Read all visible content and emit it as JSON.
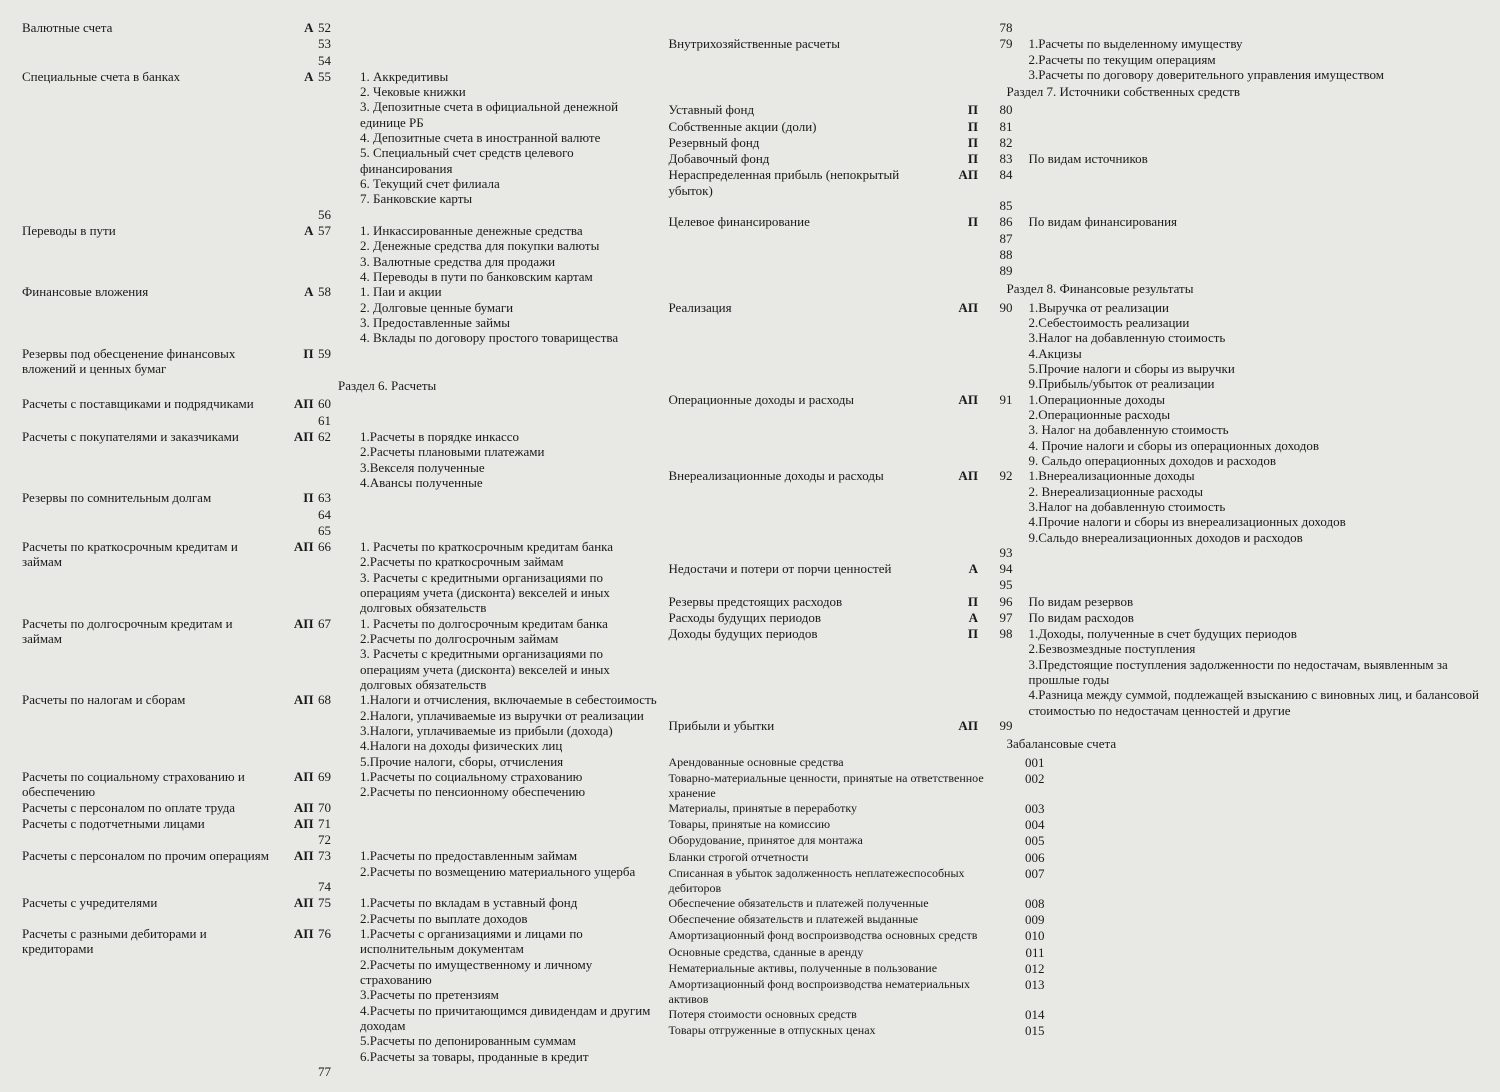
{
  "left": {
    "entries": [
      {
        "name": "Валютные счета",
        "type": "А",
        "num": "52",
        "subs": []
      },
      {
        "name": "",
        "type": "",
        "num": "53",
        "subs": []
      },
      {
        "name": "",
        "type": "",
        "num": "54",
        "subs": []
      },
      {
        "name": "Специальные счета в банках",
        "type": "А",
        "num": "55",
        "subs": [
          "1.    Аккредитивы",
          "2.    Чековые книжки",
          "3.    Депозитные счета в официальной денежной единице РБ",
          "4.    Депозитные счета в иностранной валюте",
          "5.    Специальный счет средств целевого финансирования",
          "6.    Текущий счет филиала",
          "7.    Банковские карты"
        ]
      },
      {
        "name": "",
        "type": "",
        "num": "56",
        "subs": []
      },
      {
        "name": "Переводы в пути",
        "type": "А",
        "num": "57",
        "subs": [
          "1.    Инкассированные денежные средства",
          "2.    Денежные средства для покупки валюты",
          "3.    Валютные средства для продажи",
          "4.    Переводы в пути по банковским картам"
        ]
      },
      {
        "name": "Финансовые вложения",
        "type": "А",
        "num": "58",
        "subs": [
          "1.    Паи и акции",
          "2.    Долговые ценные бумаги",
          "3.    Предоставленные займы",
          "4.    Вклады по договору простого товарищества"
        ]
      },
      {
        "name": "Резервы под обесценение финансовых вложений и ценных бумаг",
        "type": "П",
        "num": "59",
        "subs": []
      },
      {
        "section": "Раздел 6. Расчеты"
      },
      {
        "name": "Расчеты с поставщиками и подрядчиками",
        "type": "АП",
        "num": "60",
        "subs": []
      },
      {
        "name": "",
        "type": "",
        "num": "61",
        "subs": []
      },
      {
        "name": "Расчеты с покупателями и заказчиками",
        "type": "АП",
        "num": "62",
        "subs": [
          "1.Расчеты в порядке инкассо",
          "2.Расчеты плановыми платежами",
          "3.Векселя полученные",
          "4.Авансы полученные"
        ]
      },
      {
        "name": "Резервы по сомнительным долгам",
        "type": "П",
        "num": "63",
        "subs": []
      },
      {
        "name": "",
        "type": "",
        "num": "64",
        "subs": []
      },
      {
        "name": "",
        "type": "",
        "num": "65",
        "subs": []
      },
      {
        "name": "Расчеты по краткосрочным кредитам и займам",
        "type": "АП",
        "num": "66",
        "subs": [
          "1. Расчеты по краткосрочным кредитам банка",
          "2.Расчеты по краткосрочным займам",
          "3. Расчеты с кредитными организациями по операциям учета (дисконта) векселей и иных долговых обязательств"
        ]
      },
      {
        "name": "Расчеты по долгосрочным кредитам и займам",
        "type": "АП",
        "num": "67",
        "subs": [
          "1. Расчеты по долгосрочным кредитам банка",
          "2.Расчеты по долгосрочным займам",
          "3. Расчеты с кредитными организациями по операциям учета (дисконта) векселей и иных долговых обязательств"
        ]
      },
      {
        "name": "Расчеты по налогам и сборам",
        "type": "АП",
        "num": "68",
        "subs": [
          "1.Налоги и отчисления, включаемые в себестоимость",
          "2.Налоги, уплачиваемые из выручки от реализации",
          "3.Налоги, уплачиваемые из прибыли (дохода)",
          "4.Налоги на доходы физических лиц",
          "5.Прочие налоги, сборы, отчисления"
        ]
      },
      {
        "name": "Расчеты по социальному страхованию и обеспечению",
        "type": "АП",
        "num": "69",
        "subs": [
          "1.Расчеты по социальному страхованию",
          "2.Расчеты по пенсионному обеспечению"
        ]
      },
      {
        "name": "Расчеты с персоналом по оплате труда",
        "type": "АП",
        "num": "70",
        "subs": []
      },
      {
        "name": "Расчеты с подотчетными лицами",
        "type": "АП",
        "num": "71",
        "subs": []
      },
      {
        "name": "",
        "type": "",
        "num": "72",
        "subs": []
      },
      {
        "name": "Расчеты с персоналом по прочим операциям",
        "type": "АП",
        "num": "73",
        "subs": [
          "1.Расчеты по предоставленным займам",
          "2.Расчеты по возмещению материального ущерба"
        ]
      },
      {
        "name": "",
        "type": "",
        "num": "74",
        "subs": []
      },
      {
        "name": "Расчеты с учредителями",
        "type": "АП",
        "num": "75",
        "subs": [
          "1.Расчеты по вкладам в уставный фонд",
          "2.Расчеты по выплате доходов"
        ]
      },
      {
        "name": "Расчеты с разными дебиторами и кредиторами",
        "type": "АП",
        "num": "76",
        "subs": [
          "1.Расчеты с организациями и лицами по исполнительным документам",
          "2.Расчеты по имущественному и личному страхованию",
          "3.Расчеты по претензиям",
          "4.Расчеты по причитающимся дивидендам и другим доходам",
          "5.Расчеты по депонированным суммам",
          "6.Расчеты за товары, проданные в кредит"
        ]
      },
      {
        "name": "",
        "type": "",
        "num": "77",
        "subs": []
      }
    ]
  },
  "right": {
    "entries": [
      {
        "name": "",
        "type": "",
        "num": "78",
        "subs": []
      },
      {
        "name": "Внутрихозяйственные расчеты",
        "type": "",
        "num": "79",
        "subs": [
          "1.Расчеты по выделенному имуществу",
          "2.Расчеты по текущим операциям",
          "3.Расчеты по договору доверительного управления имуществом"
        ]
      },
      {
        "section": "Раздел 7. Источники собственных средств"
      },
      {
        "name": "Уставный фонд",
        "type": "П",
        "num": "80",
        "subs": []
      },
      {
        "name": "Собственные акции (доли)",
        "type": "П",
        "num": "81",
        "subs": []
      },
      {
        "name": "Резервный фонд",
        "type": "П",
        "num": "82",
        "subs": []
      },
      {
        "name": "Добавочный фонд",
        "type": "П",
        "num": "83",
        "subs": [
          "По видам источников"
        ]
      },
      {
        "name": "Нераспределенная прибыль (непокрытый убыток)",
        "type": "АП",
        "num": "84",
        "subs": []
      },
      {
        "name": "",
        "type": "",
        "num": "85",
        "subs": []
      },
      {
        "name": "Целевое финансирование",
        "type": "П",
        "num": "86",
        "subs": [
          "По видам финансирования"
        ]
      },
      {
        "name": "",
        "type": "",
        "num": "87",
        "subs": []
      },
      {
        "name": "",
        "type": "",
        "num": "88",
        "subs": []
      },
      {
        "name": "",
        "type": "",
        "num": "89",
        "subs": []
      },
      {
        "section": "Раздел 8. Финансовые результаты"
      },
      {
        "name": "Реализация",
        "type": "АП",
        "num": "90",
        "subs": [
          "1.Выручка от реализации",
          "2.Себестоимость реализации",
          "3.Налог на добавленную стоимость",
          "4.Акцизы",
          "5.Прочие налоги и сборы из выручки",
          "9.Прибыль/убыток от реализации"
        ]
      },
      {
        "name": "Операционные доходы и расходы",
        "type": "АП",
        "num": "91",
        "subs": [
          "1.Операционные доходы",
          "2.Операционные расходы",
          "3.    Налог на добавленную стоимость",
          "4.    Прочие налоги и сборы из операционных доходов",
          "9. Сальдо операционных доходов и расходов"
        ]
      },
      {
        "name": "Внереализационные доходы и расходы",
        "type": "АП",
        "num": "92",
        "subs": [
          "1.Внереализационные доходы",
          "2. Внереализационные расходы",
          "3.Налог на добавленную стоимость",
          "4.Прочие налоги и сборы из внереализационных доходов",
          "9.Сальдо внереализационных доходов и расходов"
        ]
      },
      {
        "name": "",
        "type": "",
        "num": "93",
        "subs": []
      },
      {
        "name": "Недостачи и потери от порчи ценностей",
        "type": "А",
        "num": "94",
        "subs": []
      },
      {
        "name": "",
        "type": "",
        "num": "95",
        "subs": []
      },
      {
        "name": "Резервы предстоящих расходов",
        "type": "П",
        "num": "96",
        "subs": [
          "По видам резервов"
        ]
      },
      {
        "name": "Расходы будущих периодов",
        "type": "А",
        "num": "97",
        "subs": [
          "По видам расходов"
        ]
      },
      {
        "name": "Доходы будущих периодов",
        "type": "П",
        "num": "98",
        "subs": [
          "1.Доходы, полученные в счет будущих периодов",
          "2.Безвозмездные поступления",
          "3.Предстоящие поступления задолженности по недостачам, выявленным за прошлые годы",
          "4.Разница между суммой, подлежащей взысканию с виновных лиц, и балансовой стоимостью по недостачам ценностей и другие"
        ]
      },
      {
        "name": "Прибыли и убытки",
        "type": "АП",
        "num": "99",
        "subs": []
      },
      {
        "section": "Забалансовые счета"
      }
    ],
    "offbalance": [
      {
        "name": "Арендованные основные средства",
        "num": "001"
      },
      {
        "name": "Товарно-материальные ценности, принятые на ответственное хранение",
        "num": "002"
      },
      {
        "name": "Материалы, принятые в переработку",
        "num": "003"
      },
      {
        "name": "Товары, принятые на комиссию",
        "num": "004"
      },
      {
        "name": "Оборудование, принятое для монтажа",
        "num": "005"
      },
      {
        "name": "Бланки строгой отчетности",
        "num": "006"
      },
      {
        "name": "Списанная в убыток задолженность неплатежеспособных дебиторов",
        "num": "007"
      },
      {
        "name": "Обеспечение обязательств и платежей полученные",
        "num": "008"
      },
      {
        "name": "Обеспечение обязательств и платежей выданные",
        "num": "009"
      },
      {
        "name": "Амортизационный фонд воспроизводства основных средств",
        "num": "010"
      },
      {
        "name": "Основные средства, сданные в аренду",
        "num": "011"
      },
      {
        "name": "Нематериальные активы, полученные в пользование",
        "num": "012"
      },
      {
        "name": "Амортизационный фонд воспроизводства нематериальных активов",
        "num": "013"
      },
      {
        "name": "Потеря стоимости основных средств",
        "num": "014"
      },
      {
        "name": "Товары отгруженные в отпускных ценах",
        "num": "015"
      }
    ]
  }
}
